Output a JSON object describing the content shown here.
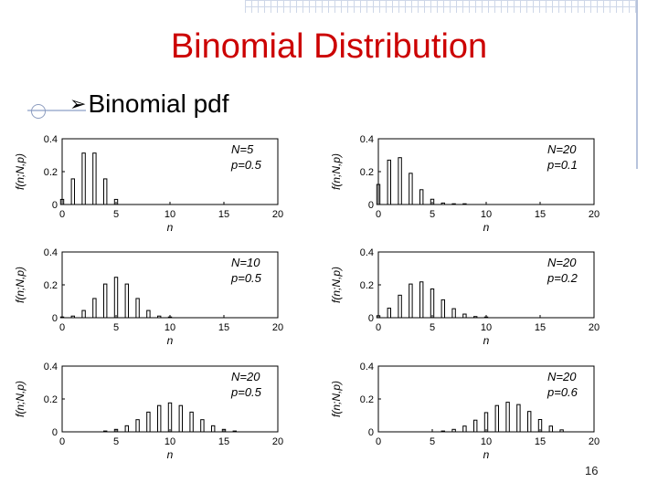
{
  "slide": {
    "title": "Binomial Distribution",
    "bullet_text": "Binomial pdf",
    "page_number": "16"
  },
  "colors": {
    "title": "#cc0000",
    "bars": "#000000"
  },
  "chart_data": [
    {
      "type": "bar",
      "legend": [
        "N=5",
        "p=0.5"
      ],
      "xlabel": "n",
      "ylabel": "f(n;N,p)",
      "xlim": [
        0,
        20
      ],
      "ylim": [
        0,
        0.4
      ],
      "xticks": [
        0,
        5,
        10,
        15,
        20
      ],
      "yticks": [
        0,
        0.2,
        0.4
      ],
      "x": [
        0,
        1,
        2,
        3,
        4,
        5
      ],
      "values": [
        0.031,
        0.156,
        0.313,
        0.313,
        0.156,
        0.031
      ]
    },
    {
      "type": "bar",
      "legend": [
        "N=20",
        "p=0.1"
      ],
      "xlabel": "n",
      "ylabel": "f(n;N,p)",
      "xlim": [
        0,
        20
      ],
      "ylim": [
        0,
        0.4
      ],
      "xticks": [
        0,
        5,
        10,
        15,
        20
      ],
      "yticks": [
        0,
        0.2,
        0.4
      ],
      "x": [
        0,
        1,
        2,
        3,
        4,
        5,
        6,
        7,
        8
      ],
      "values": [
        0.122,
        0.27,
        0.285,
        0.19,
        0.09,
        0.032,
        0.009,
        0.002,
        0.0004
      ]
    },
    {
      "type": "bar",
      "legend": [
        "N=10",
        "p=0.5"
      ],
      "xlabel": "n",
      "ylabel": "f(n;N,p)",
      "xlim": [
        0,
        20
      ],
      "ylim": [
        0,
        0.4
      ],
      "xticks": [
        0,
        5,
        10,
        15,
        20
      ],
      "yticks": [
        0,
        0.2,
        0.4
      ],
      "x": [
        0,
        1,
        2,
        3,
        4,
        5,
        6,
        7,
        8,
        9,
        10
      ],
      "values": [
        0.001,
        0.01,
        0.044,
        0.117,
        0.205,
        0.246,
        0.205,
        0.117,
        0.044,
        0.01,
        0.001
      ]
    },
    {
      "type": "bar",
      "legend": [
        "N=20",
        "p=0.2"
      ],
      "xlabel": "n",
      "ylabel": "f(n;N,p)",
      "xlim": [
        0,
        20
      ],
      "ylim": [
        0,
        0.4
      ],
      "xticks": [
        0,
        5,
        10,
        15,
        20
      ],
      "yticks": [
        0,
        0.2,
        0.4
      ],
      "x": [
        0,
        1,
        2,
        3,
        4,
        5,
        6,
        7,
        8,
        9,
        10
      ],
      "values": [
        0.012,
        0.058,
        0.137,
        0.205,
        0.218,
        0.175,
        0.109,
        0.055,
        0.022,
        0.007,
        0.002
      ]
    },
    {
      "type": "bar",
      "legend": [
        "N=20",
        "p=0.5"
      ],
      "xlabel": "n",
      "ylabel": "f(n;N,p)",
      "xlim": [
        0,
        20
      ],
      "ylim": [
        0,
        0.4
      ],
      "xticks": [
        0,
        5,
        10,
        15,
        20
      ],
      "yticks": [
        0,
        0.2,
        0.4
      ],
      "x": [
        4,
        5,
        6,
        7,
        8,
        9,
        10,
        11,
        12,
        13,
        14,
        15,
        16
      ],
      "values": [
        0.005,
        0.015,
        0.037,
        0.074,
        0.12,
        0.16,
        0.176,
        0.16,
        0.12,
        0.074,
        0.037,
        0.015,
        0.005
      ]
    },
    {
      "type": "bar",
      "legend": [
        "N=20",
        "p=0.6"
      ],
      "xlabel": "n",
      "ylabel": "f(n;N,p)",
      "xlim": [
        0,
        20
      ],
      "ylim": [
        0,
        0.4
      ],
      "xticks": [
        0,
        5,
        10,
        15,
        20
      ],
      "yticks": [
        0,
        0.2,
        0.4
      ],
      "x": [
        6,
        7,
        8,
        9,
        10,
        11,
        12,
        13,
        14,
        15,
        16,
        17
      ],
      "values": [
        0.005,
        0.015,
        0.035,
        0.071,
        0.117,
        0.16,
        0.18,
        0.166,
        0.124,
        0.075,
        0.035,
        0.012
      ]
    }
  ]
}
